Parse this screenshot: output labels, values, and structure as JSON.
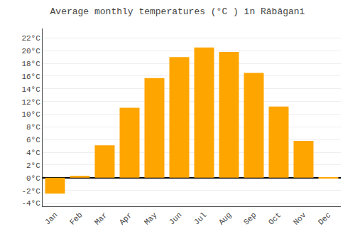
{
  "chart_data": {
    "type": "bar",
    "title": "Average monthly temperatures (°C ) in Răbăgani",
    "categories": [
      "Jan",
      "Feb",
      "Mar",
      "Apr",
      "May",
      "Jun",
      "Jul",
      "Aug",
      "Sep",
      "Oct",
      "Nov",
      "Dec"
    ],
    "values": [
      -2.5,
      0.3,
      5.1,
      11.0,
      15.7,
      19.0,
      20.5,
      19.8,
      16.5,
      11.2,
      5.8,
      -0.1
    ],
    "color": "#FFA500",
    "ylim": [
      -4.5,
      23.5
    ],
    "yticks": [
      {
        "value": -4,
        "label": "-4°C"
      },
      {
        "value": -2,
        "label": "-2°C"
      },
      {
        "value": 0,
        "label": "0°C"
      },
      {
        "value": 2,
        "label": "2°C"
      },
      {
        "value": 4,
        "label": "4°C"
      },
      {
        "value": 6,
        "label": "6°C"
      },
      {
        "value": 8,
        "label": "8°C"
      },
      {
        "value": 10,
        "label": "10°C"
      },
      {
        "value": 12,
        "label": "12°C"
      },
      {
        "value": 14,
        "label": "14°C"
      },
      {
        "value": 16,
        "label": "16°C"
      },
      {
        "value": 18,
        "label": "18°C"
      },
      {
        "value": 20,
        "label": "20°C"
      },
      {
        "value": 22,
        "label": "22°C"
      }
    ],
    "grid": true
  }
}
